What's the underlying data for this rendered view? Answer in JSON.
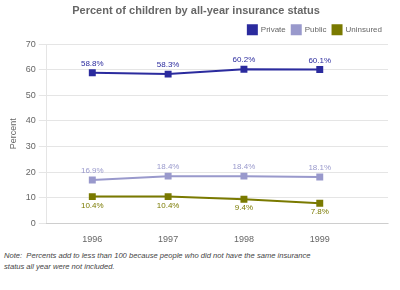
{
  "chart_data": {
    "type": "line",
    "title": "Percent of children by all-year insurance status",
    "ylabel": "Percent",
    "x": [
      1996,
      1997,
      1998,
      1999
    ],
    "series": [
      {
        "name": "Private",
        "color": "#2b2b9e",
        "marker": "square",
        "values": [
          58.8,
          58.3,
          60.2,
          60.1
        ],
        "value_labels": [
          "58.8%",
          "58.3%",
          "60.2%",
          "60.1%"
        ]
      },
      {
        "name": "Public",
        "color": "#9999cc",
        "marker": "square",
        "values": [
          16.9,
          18.4,
          18.4,
          18.1
        ],
        "value_labels": [
          "16.9%",
          "18.4%",
          "18.4%",
          "18.1%"
        ]
      },
      {
        "name": "Uninsured",
        "color": "#7a7a00",
        "marker": "square",
        "values": [
          10.4,
          10.4,
          9.4,
          7.8
        ],
        "value_labels": [
          "10.4%",
          "10.4%",
          "9.4%",
          "7.8%"
        ]
      }
    ],
    "xlim": [
      1995.4,
      1999.9
    ],
    "xticks": [
      1996,
      1997,
      1998,
      1999
    ],
    "ylim": [
      0,
      70
    ],
    "yticks": [
      0,
      10,
      20,
      30,
      40,
      50,
      60,
      70
    ],
    "grid": "y",
    "legend": "upper right",
    "data_labels": true,
    "annotations": [
      "Note:  Percents add to less than 100 because people who did not have the same insurance",
      "status all year were not included."
    ]
  }
}
